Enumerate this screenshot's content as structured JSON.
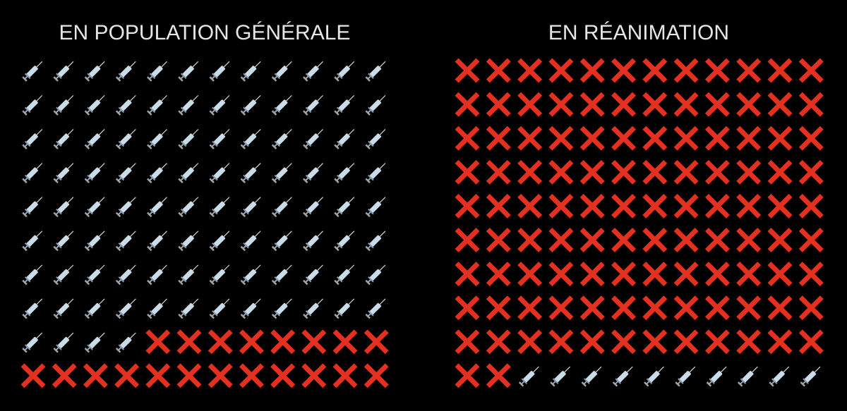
{
  "chart_data": [
    {
      "type": "waffle",
      "title": "EN POPULATION GÉNÉRALE",
      "columns": 12,
      "series": [
        {
          "marker": "syringe",
          "color": "#c9dcea",
          "values": [
            100
          ]
        },
        {
          "marker": "cross",
          "color": "#e3301f",
          "values": [
            20
          ]
        }
      ]
    },
    {
      "type": "waffle",
      "title": "EN RÉANIMATION",
      "columns": 12,
      "series": [
        {
          "marker": "cross",
          "color": "#e3301f",
          "values": [
            110
          ]
        },
        {
          "marker": "syringe",
          "color": "#c9dcea",
          "values": [
            10
          ]
        }
      ]
    }
  ]
}
